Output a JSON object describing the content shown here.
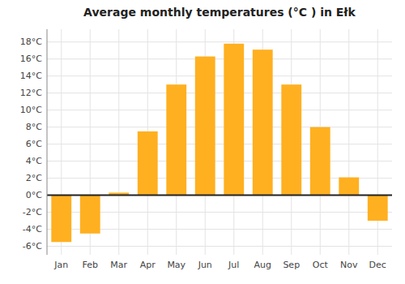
{
  "chart_data": {
    "type": "bar",
    "title": "Average monthly temperatures (°C ) in Ełk",
    "categories": [
      "Jan",
      "Feb",
      "Mar",
      "Apr",
      "May",
      "Jun",
      "Jul",
      "Aug",
      "Sep",
      "Oct",
      "Nov",
      "Dec"
    ],
    "values": [
      -5.5,
      -4.5,
      0.3,
      7.5,
      13.0,
      16.3,
      17.8,
      17.1,
      13.0,
      8.0,
      2.1,
      -3.0
    ],
    "color": "#FFB020",
    "ylim": [
      -7,
      19.5
    ],
    "yticks": [
      {
        "value": -6,
        "label": "-6°C"
      },
      {
        "value": -4,
        "label": "-4°C"
      },
      {
        "value": -2,
        "label": "-2°C"
      },
      {
        "value": 0,
        "label": "0°C"
      },
      {
        "value": 2,
        "label": "2°C"
      },
      {
        "value": 4,
        "label": "4°C"
      },
      {
        "value": 6,
        "label": "6°C"
      },
      {
        "value": 8,
        "label": "8°C"
      },
      {
        "value": 10,
        "label": "10°C"
      },
      {
        "value": 12,
        "label": "12°C"
      },
      {
        "value": 14,
        "label": "14°C"
      },
      {
        "value": 16,
        "label": "16°C"
      },
      {
        "value": 18,
        "label": "18°C"
      }
    ],
    "grid": true
  }
}
